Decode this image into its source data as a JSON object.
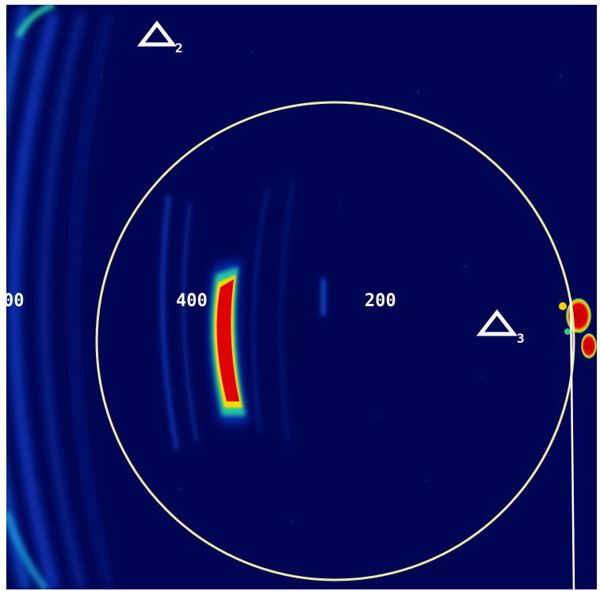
{
  "display": {
    "background_color": "#000553",
    "range_circle_color": "#f2eba6",
    "heading_line_color": "#ffffff"
  },
  "range_labels": [
    {
      "id": "left-edge",
      "text": "00"
    },
    {
      "id": "400",
      "text": "400"
    },
    {
      "id": "200",
      "text": "200"
    }
  ],
  "markers": [
    {
      "id": "marker-2",
      "icon": "triangle-marker-icon",
      "label": "2"
    },
    {
      "id": "marker-3",
      "icon": "triangle-marker-icon",
      "label": "3"
    }
  ]
}
